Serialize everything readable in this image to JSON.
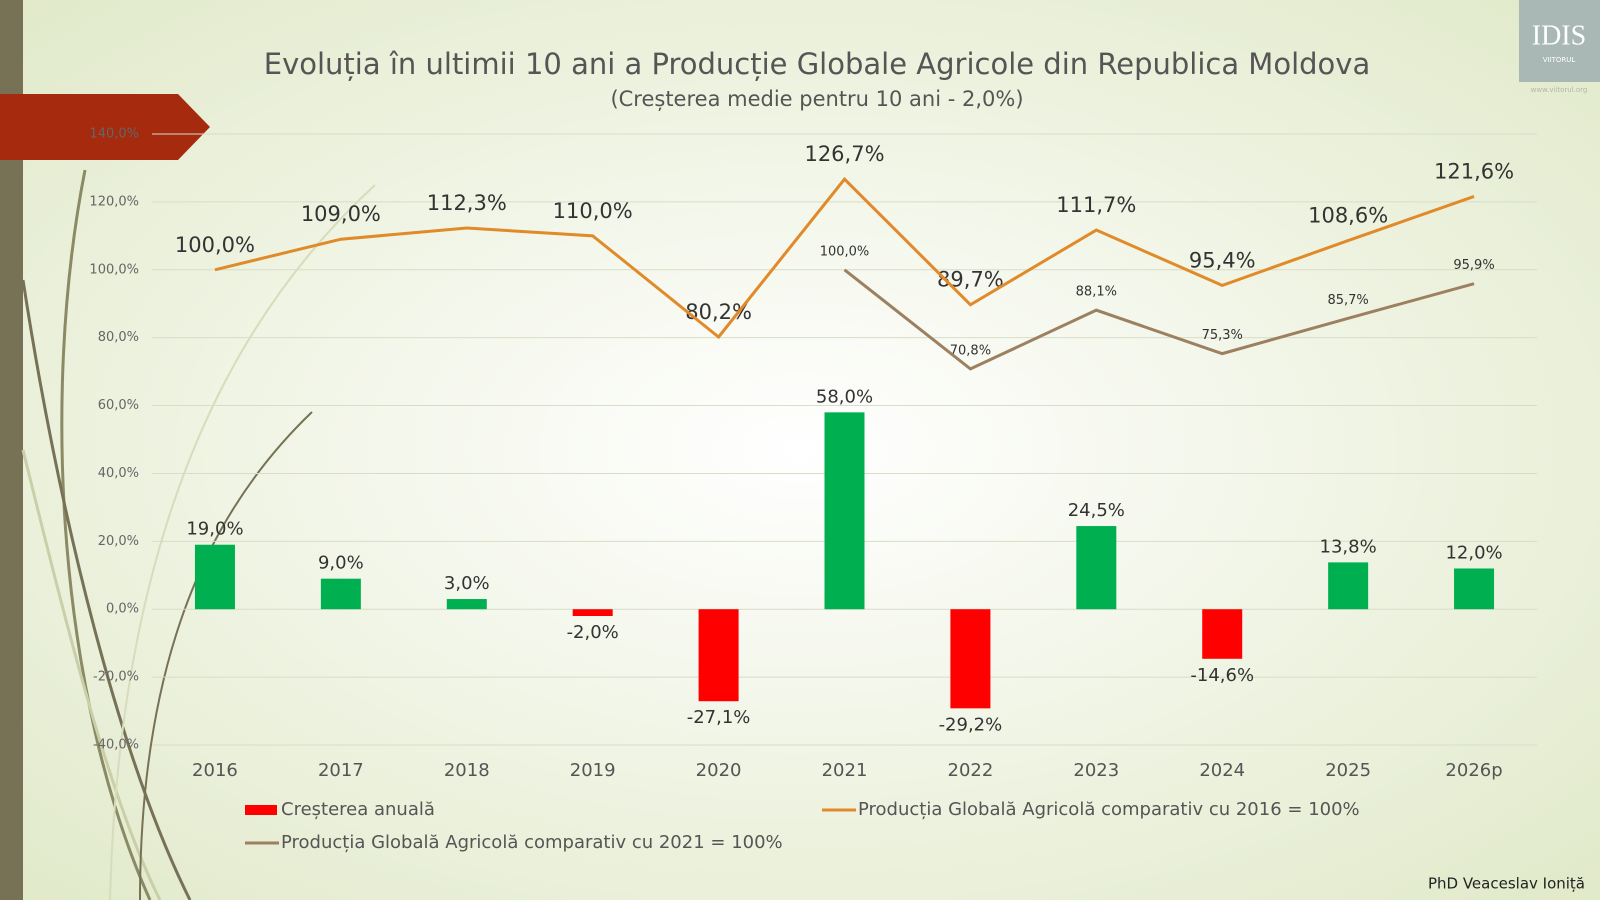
{
  "chart_data": {
    "type": "combo",
    "title": "Evoluția în ultimii 10 ani a Producție Globale Agricole din Republica Moldova",
    "subtitle": "(Creșterea medie pentru 10 ani - 2,0%)",
    "categories": [
      "2016",
      "2017",
      "2018",
      "2019",
      "2020",
      "2021",
      "2022",
      "2023",
      "2024",
      "2025",
      "2026p"
    ],
    "ylim": [
      -40,
      140
    ],
    "yticks": [
      {
        "value": -40,
        "label": "-40,0%"
      },
      {
        "value": -20,
        "label": "-20,0%"
      },
      {
        "value": 0,
        "label": "0,0%"
      },
      {
        "value": 20,
        "label": "20,0%"
      },
      {
        "value": 40,
        "label": "40,0%"
      },
      {
        "value": 60,
        "label": "60,0%"
      },
      {
        "value": 80,
        "label": "80,0%"
      },
      {
        "value": 100,
        "label": "100,0%"
      },
      {
        "value": 120,
        "label": "120,0%"
      },
      {
        "value": 140,
        "label": "140,0%"
      }
    ],
    "grid": true,
    "series": [
      {
        "name": "Creșterea anuală",
        "type": "bar",
        "color": "#ff0000",
        "positive_color": "#00b050",
        "values": [
          19.0,
          9.0,
          3.0,
          -2.0,
          -27.1,
          58.0,
          -29.2,
          24.5,
          -14.6,
          13.8,
          12.0
        ],
        "value_labels": [
          "19,0%",
          "9,0%",
          "3,0%",
          "-2,0%",
          "-27,1%",
          "58,0%",
          "-29,2%",
          "24,5%",
          "-14,6%",
          "13,8%",
          "12,0%"
        ]
      },
      {
        "name": "Producția Globală Agricolă comparativ cu 2016 = 100%",
        "type": "line",
        "color": "#e08a2a",
        "values": [
          100.0,
          109.0,
          112.3,
          110.0,
          80.2,
          126.7,
          89.7,
          111.7,
          95.4,
          108.6,
          121.6
        ],
        "value_labels": [
          "100,0%",
          "109,0%",
          "112,3%",
          "110,0%",
          "80,2%",
          "126,7%",
          "89,7%",
          "111,7%",
          "95,4%",
          "108,6%",
          "121,6%"
        ]
      },
      {
        "name": "Producția Globală Agricolă comparativ cu 2021 = 100%",
        "type": "line",
        "color": "#9c8060",
        "values": [
          null,
          null,
          null,
          null,
          null,
          100.0,
          70.8,
          88.1,
          75.3,
          85.7,
          95.9
        ],
        "value_labels": [
          null,
          null,
          null,
          null,
          null,
          "100,0%",
          "70,8%",
          "88,1%",
          "75,3%",
          "85,7%",
          "95,9%"
        ]
      }
    ],
    "author": "PhD Veaceslav Ioniță",
    "logo": "IDIS",
    "logo_sub": "VIITORUL",
    "logo_url": "www.viitorul.org"
  }
}
